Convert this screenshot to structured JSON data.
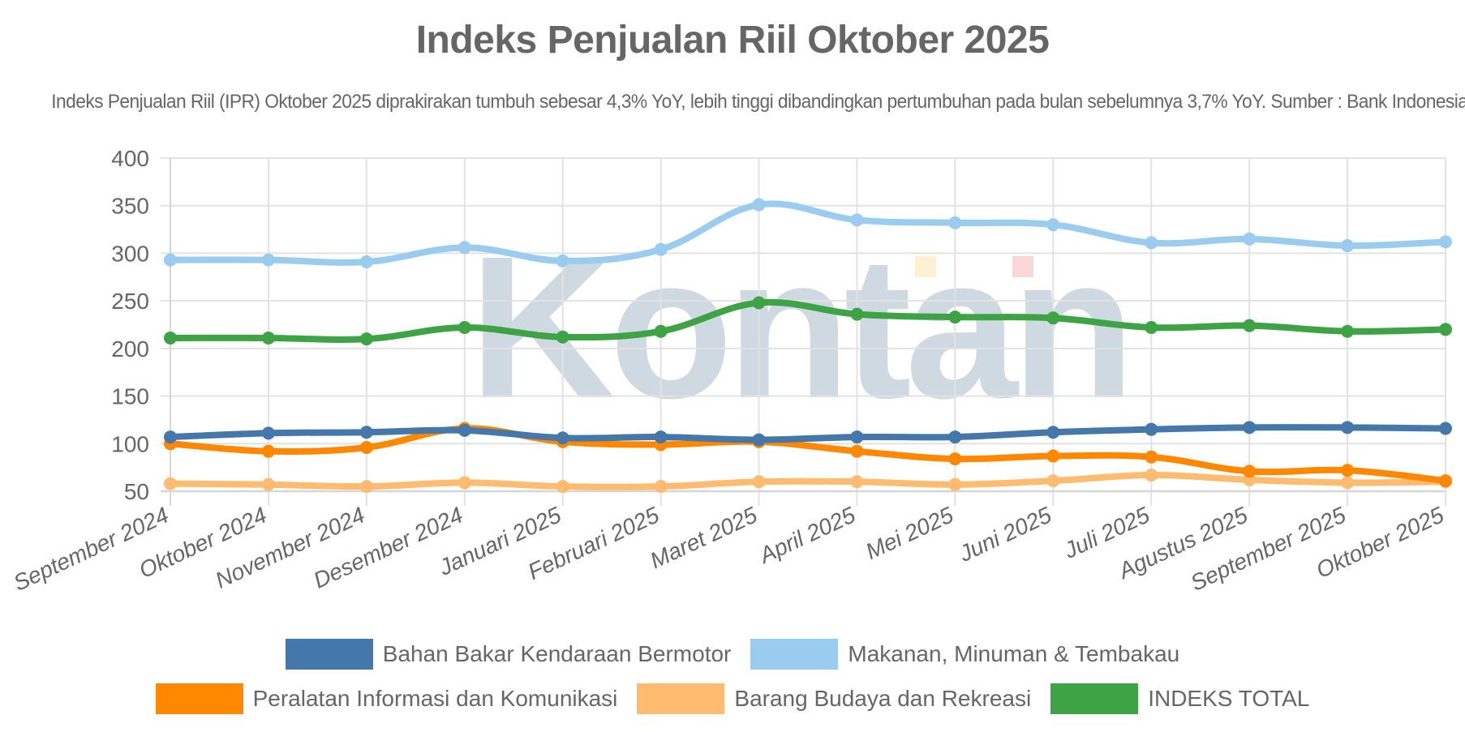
{
  "header": {
    "title": "Indeks Penjualan Riil Oktober 2025",
    "subtitle": "Indeks Penjualan Riil (IPR) Oktober 2025 diprakirakan tumbuh sebesar 4,3% YoY, lebih tinggi dibandingkan pertumbuhan pada bulan sebelumnya 3,7% YoY. Sumber : Bank Indonesia"
  },
  "watermark": "Kontan",
  "chart_data": {
    "type": "line",
    "title": "Indeks Penjualan Riil Oktober 2025",
    "subtitle": "Indeks Penjualan Riil (IPR) Oktober 2025 diprakirakan tumbuh sebesar 4,3% YoY, lebih tinggi dibandingkan pertumbuhan pada bulan sebelumnya 3,7% YoY. Sumber : Bank Indonesia",
    "xlabel": "",
    "ylabel": "",
    "ylim": [
      50,
      400
    ],
    "yticks": [
      50,
      100,
      150,
      200,
      250,
      300,
      350,
      400
    ],
    "grid": true,
    "legend_position": "bottom",
    "categories": [
      "September 2024",
      "Oktober 2024",
      "November 2024",
      "Desember 2024",
      "Januari 2025",
      "Februari 2025",
      "Maret 2025",
      "April 2025",
      "Mei 2025",
      "Juni 2025",
      "Juli 2025",
      "Agustus 2025",
      "September 2025",
      "Oktober 2025"
    ],
    "series": [
      {
        "name": "Bahan Bakar Kendaraan Bermotor",
        "color": "#4477aa",
        "values": [
          107,
          111,
          112,
          114,
          106,
          107,
          104,
          107,
          107,
          112,
          115,
          117,
          117,
          116
        ]
      },
      {
        "name": "Makanan, Minuman & Tembakau",
        "color": "#99ccee",
        "values": [
          293,
          293,
          291,
          306,
          292,
          304,
          351,
          335,
          332,
          330,
          311,
          315,
          308,
          312
        ]
      },
      {
        "name": "Peralatan Informasi dan Komunikasi",
        "color": "#ff8800",
        "values": [
          100,
          92,
          96,
          116,
          102,
          99,
          102,
          92,
          84,
          87,
          86,
          71,
          72,
          61
        ]
      },
      {
        "name": "Barang Budaya dan Rekreasi",
        "color": "#ffbb6f",
        "values": [
          58,
          57,
          55,
          59,
          55,
          55,
          60,
          60,
          57,
          61,
          67,
          62,
          59,
          60
        ]
      },
      {
        "name": "INDEKS TOTAL",
        "color": "#3ea345",
        "values": [
          211,
          211,
          210,
          222,
          212,
          218,
          248,
          236,
          233,
          232,
          222,
          224,
          218,
          220
        ]
      }
    ]
  },
  "legend": {
    "row1": [
      {
        "label": "Bahan Bakar Kendaraan Bermotor",
        "color": "#4477aa"
      },
      {
        "label": "Makanan, Minuman & Tembakau",
        "color": "#99ccee"
      }
    ],
    "row2": [
      {
        "label": "Peralatan Informasi dan Komunikasi",
        "color": "#ff8800"
      },
      {
        "label": "Barang Budaya dan Rekreasi",
        "color": "#ffbb6f"
      },
      {
        "label": "INDEKS TOTAL",
        "color": "#3ea345"
      }
    ]
  }
}
